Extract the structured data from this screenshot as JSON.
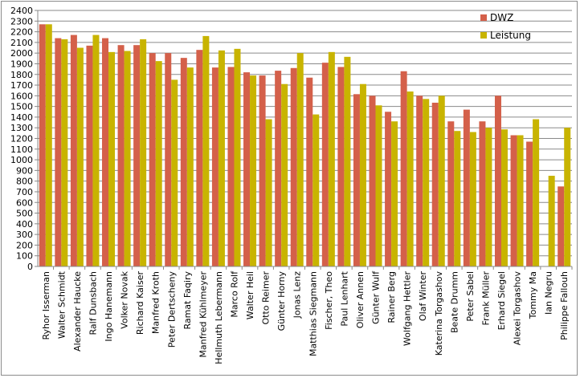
{
  "chart_data": {
    "type": "bar",
    "title": "",
    "xlabel": "",
    "ylabel": "",
    "ylim": [
      0,
      2400
    ],
    "ytick_step": 100,
    "grid": true,
    "legend_position": "top-right",
    "categories": [
      "Ryhor Isserman",
      "Walter Schmidt",
      "Alexander Haucke",
      "Ralf Dunsbach",
      "Ingo Hanemann",
      "Volker Novak",
      "Richard Kaiser",
      "Manfred Kroth",
      "Peter Dertscheny",
      "Ramat Faqiry",
      "Manfred Kühlmeyer",
      "Hellmuth Lebermann",
      "Marco Rolf",
      "Walter Heil",
      "Otto Reimer",
      "Günter Horny",
      "Jonas Lenz",
      "Matthias Siegmann",
      "Fischer, Theo",
      "Paul Lenhart",
      "Oliver Annen",
      "Günter Wulf",
      "Rainer Berg",
      "Wolfgang Hettler",
      "Olaf Winter",
      "Katerina Torgashov",
      "Beate Drumm",
      "Peter Sabel",
      "Frank Müller",
      "Erhard Siegel",
      "Alexei Torgashov",
      "Tommy Ma",
      "Ian Negru",
      "Philippe Fallouh"
    ],
    "series": [
      {
        "name": "DWZ",
        "color": "#d4604a",
        "values": [
          2270,
          2140,
          2170,
          2070,
          2140,
          2075,
          2075,
          2000,
          2000,
          1955,
          2030,
          1865,
          1870,
          1820,
          1790,
          1835,
          1860,
          1770,
          1910,
          1870,
          1615,
          1600,
          1450,
          1830,
          1600,
          1535,
          1360,
          1470,
          1360,
          1600,
          1230,
          1170,
          null,
          750
        ]
      },
      {
        "name": "Leistung",
        "color": "#c8b400",
        "values": [
          2270,
          2130,
          2050,
          2170,
          2010,
          2020,
          2130,
          1925,
          1750,
          1865,
          2160,
          2025,
          2040,
          1790,
          1380,
          1710,
          2000,
          1425,
          2010,
          1965,
          1710,
          1510,
          1360,
          1640,
          1570,
          1600,
          1270,
          1260,
          1300,
          1285,
          1230,
          1380,
          850,
          1300
        ]
      }
    ]
  }
}
